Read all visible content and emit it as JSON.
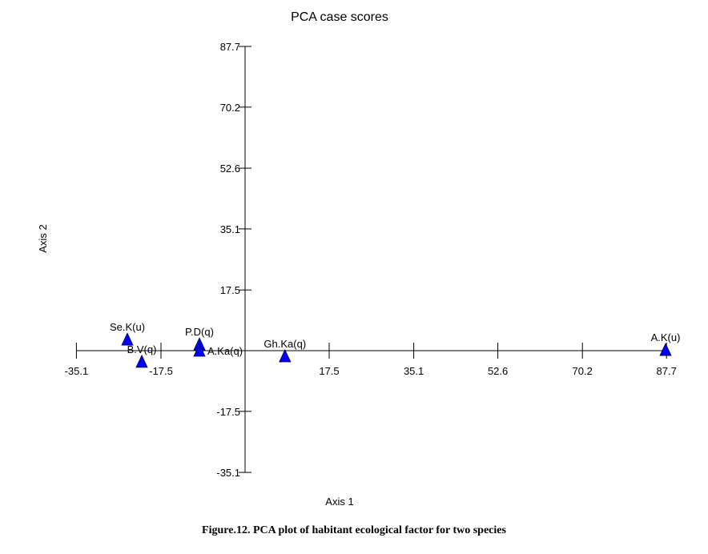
{
  "chart_data": {
    "type": "scatter",
    "title": "PCA case scores",
    "xlabel": "Axis 1",
    "ylabel": "Axis 2",
    "xlim": [
      -35.1,
      87.7
    ],
    "ylim": [
      -35.1,
      87.7
    ],
    "x_ticks": [
      "-35.1",
      "-17.5",
      "17.5",
      "35.1",
      "52.6",
      "70.2",
      "87.7"
    ],
    "x_tick_values": [
      -35.1,
      -17.5,
      17.5,
      35.1,
      52.6,
      70.2,
      87.7
    ],
    "y_ticks": [
      "87.7",
      "70.2",
      "52.6",
      "35.1",
      "17.5",
      "-17.5",
      "-35.1"
    ],
    "y_tick_values": [
      87.7,
      70.2,
      52.6,
      35.1,
      17.5,
      -17.5,
      -35.1
    ],
    "grid": false,
    "marker_color": "#0000ff",
    "points": [
      {
        "label": "Se.K(u)",
        "x": -24.5,
        "y": 3.2
      },
      {
        "label": "B.V(q)",
        "x": -21.5,
        "y": -3.2
      },
      {
        "label": "P.D(q)",
        "x": -9.5,
        "y": 1.8
      },
      {
        "label": "A.Ka(q)",
        "x": -9.5,
        "y": 0.0
      },
      {
        "label": "Gh.Ka(q)",
        "x": 8.3,
        "y": -1.6
      },
      {
        "label": "A.K(u)",
        "x": 87.5,
        "y": 0.2
      }
    ]
  },
  "caption": "Figure.12. PCA plot of habitant ecological factor for two species"
}
